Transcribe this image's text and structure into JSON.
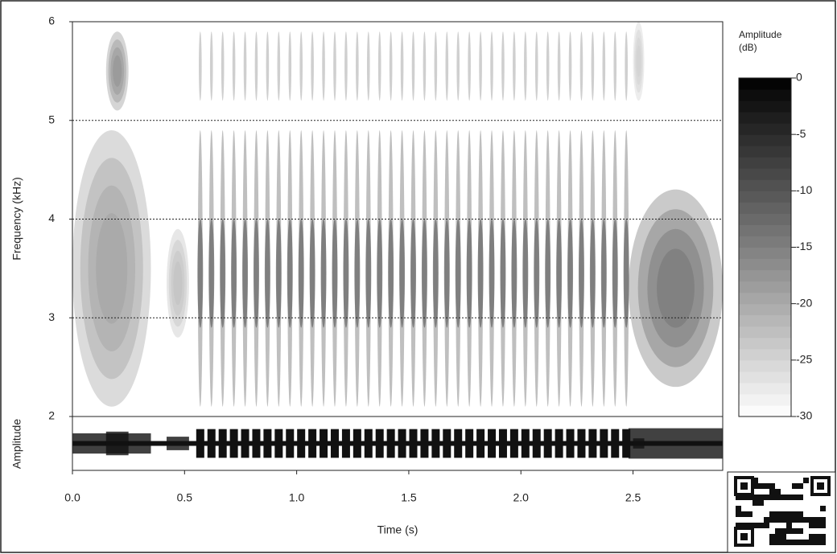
{
  "chart_data": {
    "type": "spectrogram",
    "ylabel": "Frequency (kHz)",
    "xlabel": "Time (s)",
    "wave_label": "Amplitude",
    "colorbar_label": [
      "Amplitude",
      "(dB)"
    ],
    "xlim": [
      0,
      2.9
    ],
    "ylim": [
      2,
      6
    ],
    "zlim": [
      -30,
      0
    ],
    "xticks": [
      {
        "value": 0,
        "label": "0.0"
      },
      0.5,
      {
        "value": 1,
        "label": "1.0"
      },
      1.5,
      {
        "value": 2,
        "label": "2.0"
      },
      2.5
    ],
    "yticks": [
      2,
      3,
      4,
      5,
      6
    ],
    "zticks": [
      0,
      -5,
      -10,
      -15,
      -20,
      -25,
      -30
    ],
    "grid_lines": [
      3,
      4,
      5
    ],
    "calls": [
      {
        "start": 0.0,
        "end": 0.35,
        "fmin": 2.1,
        "fmax": 4.9,
        "db": -18
      },
      {
        "start": 0.15,
        "end": 0.25,
        "fmin": 5.1,
        "fmax": 5.9,
        "db": -16
      },
      {
        "start": 0.42,
        "end": 0.52,
        "fmin": 2.8,
        "fmax": 3.9,
        "db": -22
      },
      {
        "start": 2.48,
        "end": 2.9,
        "fmin": 2.3,
        "fmax": 4.3,
        "db": -12
      },
      {
        "start": 2.5,
        "end": 2.55,
        "fmin": 5.2,
        "fmax": 6.0,
        "db": -24
      }
    ],
    "pulse_times": [
      0.57,
      0.62,
      0.67,
      0.72,
      0.77,
      0.82,
      0.87,
      0.92,
      0.97,
      1.02,
      1.07,
      1.12,
      1.17,
      1.22,
      1.27,
      1.32,
      1.37,
      1.42,
      1.47,
      1.52,
      1.57,
      1.62,
      1.67,
      1.72,
      1.77,
      1.82,
      1.87,
      1.92,
      1.97,
      2.02,
      2.07,
      2.12,
      2.17,
      2.22,
      2.27,
      2.32,
      2.37,
      2.42,
      2.47
    ],
    "pulse_band": [
      2.1,
      4.9
    ],
    "pulse_db": -20,
    "pulse_core_band": [
      2.9,
      4.0
    ],
    "pulse_core_db": -10,
    "pulse_upper_band": [
      5.2,
      5.9
    ],
    "pulse_upper_db": -22
  }
}
